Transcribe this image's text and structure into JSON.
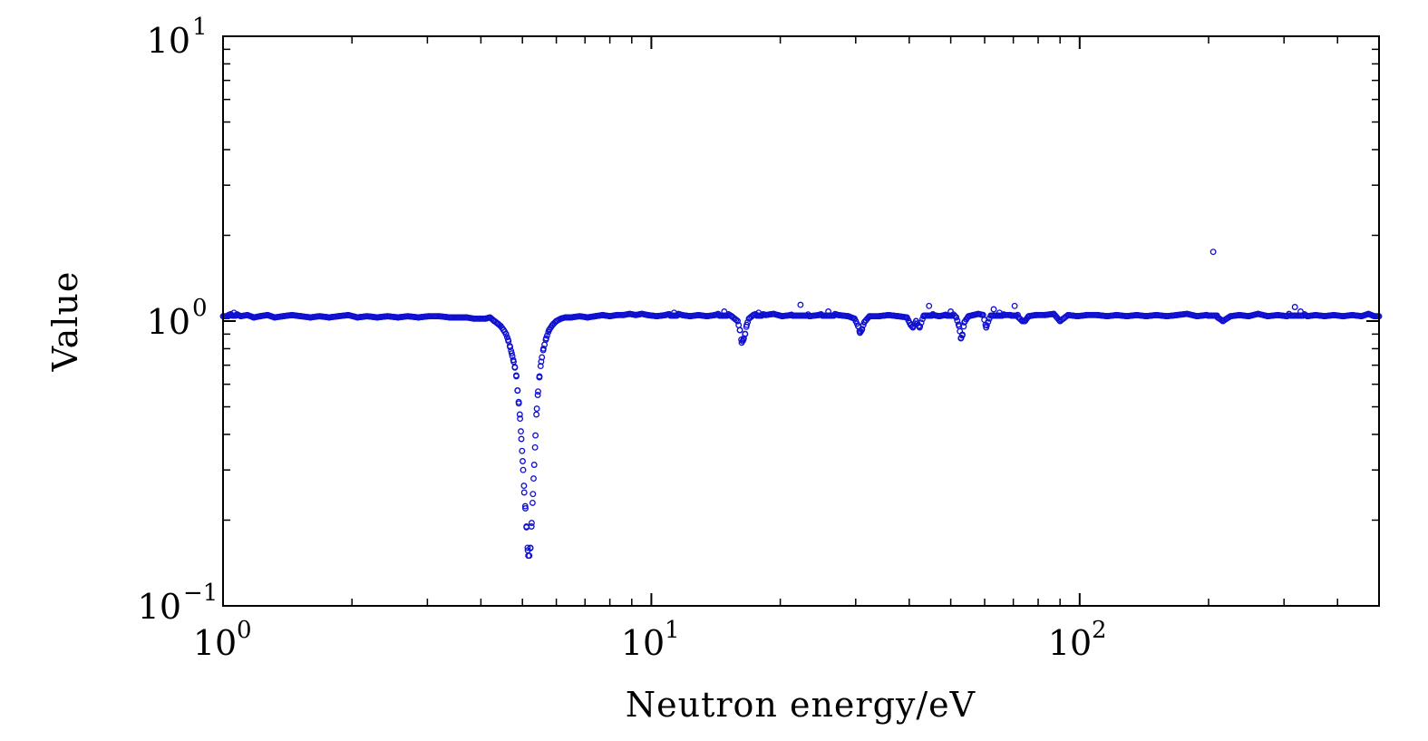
{
  "chart_data": {
    "type": "scatter",
    "title": "",
    "xlabel": "Neutron energy/eV",
    "ylabel": "Value",
    "x_scale": "log",
    "y_scale": "log",
    "xlim": [
      1,
      500
    ],
    "ylim": [
      0.1,
      10
    ],
    "x_ticks": [
      {
        "value": 1,
        "base": "10",
        "exp": "0"
      },
      {
        "value": 10,
        "base": "10",
        "exp": "1"
      },
      {
        "value": 100,
        "base": "10",
        "exp": "2"
      }
    ],
    "y_ticks": [
      {
        "value": 0.1,
        "base": "10",
        "exp": "−1"
      },
      {
        "value": 1,
        "base": "10",
        "exp": "0"
      },
      {
        "value": 10,
        "base": "10",
        "exp": "1"
      }
    ],
    "marker": {
      "shape": "open-circle",
      "color": "#1010d0"
    },
    "series": [
      {
        "name": "Value",
        "points": [
          [
            1.03,
            1.05
          ],
          [
            1.06,
            1.07
          ],
          [
            1.1,
            1.04
          ],
          [
            1.14,
            1.05
          ],
          [
            1.18,
            1.03
          ],
          [
            1.22,
            1.04
          ],
          [
            1.27,
            1.05
          ],
          [
            1.32,
            1.03
          ],
          [
            1.38,
            1.04
          ],
          [
            1.45,
            1.05
          ],
          [
            1.52,
            1.04
          ],
          [
            1.6,
            1.03
          ],
          [
            1.68,
            1.04
          ],
          [
            1.77,
            1.03
          ],
          [
            1.86,
            1.04
          ],
          [
            1.96,
            1.05
          ],
          [
            2.06,
            1.03
          ],
          [
            2.17,
            1.04
          ],
          [
            2.29,
            1.03
          ],
          [
            2.42,
            1.04
          ],
          [
            2.56,
            1.03
          ],
          [
            2.7,
            1.04
          ],
          [
            2.86,
            1.03
          ],
          [
            3.02,
            1.04
          ],
          [
            3.2,
            1.04
          ],
          [
            3.38,
            1.03
          ],
          [
            3.55,
            1.03
          ],
          [
            3.7,
            1.03
          ],
          [
            3.85,
            1.02
          ],
          [
            3.98,
            1.02
          ],
          [
            4.1,
            1.02
          ],
          [
            4.2,
            1.03
          ],
          [
            4.3,
            1.0
          ],
          [
            4.38,
            0.98
          ],
          [
            4.45,
            0.96
          ],
          [
            4.52,
            0.93
          ],
          [
            4.58,
            0.9
          ],
          [
            4.63,
            0.86
          ],
          [
            4.68,
            0.81
          ],
          [
            4.72,
            0.77
          ],
          [
            4.76,
            0.73
          ],
          [
            4.8,
            0.69
          ],
          [
            4.84,
            0.64
          ],
          [
            4.87,
            0.57
          ],
          [
            4.9,
            0.52
          ],
          [
            4.93,
            0.47
          ],
          [
            4.96,
            0.41
          ],
          [
            4.99,
            0.35
          ],
          [
            5.02,
            0.3
          ],
          [
            5.05,
            0.25
          ],
          [
            5.08,
            0.22
          ],
          [
            5.11,
            0.19
          ],
          [
            5.14,
            0.16
          ],
          [
            5.16,
            0.15
          ],
          [
            5.19,
            0.15
          ],
          [
            5.22,
            0.16
          ],
          [
            5.25,
            0.19
          ],
          [
            5.28,
            0.23
          ],
          [
            5.31,
            0.28
          ],
          [
            5.35,
            0.36
          ],
          [
            5.39,
            0.47
          ],
          [
            5.43,
            0.55
          ],
          [
            5.48,
            0.64
          ],
          [
            5.53,
            0.72
          ],
          [
            5.6,
            0.8
          ],
          [
            5.68,
            0.87
          ],
          [
            5.77,
            0.93
          ],
          [
            5.88,
            0.97
          ],
          [
            6.0,
            1.0
          ],
          [
            6.15,
            1.02
          ],
          [
            6.3,
            1.03
          ],
          [
            6.5,
            1.03
          ],
          [
            6.8,
            1.04
          ],
          [
            7.1,
            1.03
          ],
          [
            7.4,
            1.04
          ],
          [
            7.7,
            1.05
          ],
          [
            8.0,
            1.04
          ],
          [
            8.3,
            1.05
          ],
          [
            8.6,
            1.05
          ],
          [
            8.9,
            1.06
          ],
          [
            9.2,
            1.05
          ],
          [
            9.5,
            1.06
          ],
          [
            9.8,
            1.05
          ],
          [
            10.3,
            1.04
          ],
          [
            10.8,
            1.05
          ],
          [
            11.3,
            1.07
          ],
          [
            11.8,
            1.05
          ],
          [
            12.3,
            1.04
          ],
          [
            12.9,
            1.05
          ],
          [
            13.5,
            1.04
          ],
          [
            14.1,
            1.05
          ],
          [
            14.8,
            1.08
          ],
          [
            15.4,
            1.04
          ],
          [
            15.9,
            1.0
          ],
          [
            16.1,
            0.93
          ],
          [
            16.25,
            0.84
          ],
          [
            16.4,
            0.86
          ],
          [
            16.55,
            0.9
          ],
          [
            16.7,
            0.97
          ],
          [
            16.9,
            1.02
          ],
          [
            17.3,
            1.05
          ],
          [
            17.8,
            1.07
          ],
          [
            18.5,
            1.05
          ],
          [
            19.3,
            1.06
          ],
          [
            20.2,
            1.04
          ],
          [
            21.2,
            1.05
          ],
          [
            22.3,
            1.14
          ],
          [
            23.4,
            1.04
          ],
          [
            24.6,
            1.05
          ],
          [
            25.9,
            1.08
          ],
          [
            27.3,
            1.05
          ],
          [
            28.8,
            1.04
          ],
          [
            29.8,
            1.02
          ],
          [
            30.4,
            0.96
          ],
          [
            30.7,
            0.91
          ],
          [
            31.0,
            0.93
          ],
          [
            31.4,
            0.99
          ],
          [
            32.3,
            1.04
          ],
          [
            34.0,
            1.04
          ],
          [
            35.8,
            1.05
          ],
          [
            37.7,
            1.04
          ],
          [
            39.5,
            1.03
          ],
          [
            40.3,
            0.97
          ],
          [
            40.8,
            0.95
          ],
          [
            41.5,
            1.0
          ],
          [
            42.3,
            0.95
          ],
          [
            43.2,
            1.04
          ],
          [
            44.5,
            1.13
          ],
          [
            45.5,
            1.05
          ],
          [
            47.0,
            1.04
          ],
          [
            48.5,
            1.05
          ],
          [
            50.0,
            1.08
          ],
          [
            51.5,
            1.03
          ],
          [
            52.3,
            0.96
          ],
          [
            52.8,
            0.87
          ],
          [
            53.2,
            0.89
          ],
          [
            53.8,
            0.99
          ],
          [
            55.0,
            1.04
          ],
          [
            56.5,
            1.05
          ],
          [
            58.0,
            1.06
          ],
          [
            59.5,
            1.05
          ],
          [
            60.5,
            0.95
          ],
          [
            61.5,
            1.02
          ],
          [
            63.0,
            1.1
          ],
          [
            65.0,
            1.07
          ],
          [
            67.0,
            1.05
          ],
          [
            69.0,
            1.05
          ],
          [
            70.5,
            1.13
          ],
          [
            72.0,
            1.03
          ],
          [
            73.5,
            1.0
          ],
          [
            74.5,
            1.0
          ],
          [
            76.0,
            1.04
          ],
          [
            79.0,
            1.05
          ],
          [
            83.0,
            1.05
          ],
          [
            87.0,
            1.06
          ],
          [
            90.0,
            1.0
          ],
          [
            94.0,
            1.05
          ],
          [
            99.0,
            1.04
          ],
          [
            104.0,
            1.05
          ],
          [
            110.0,
            1.05
          ],
          [
            116.0,
            1.04
          ],
          [
            122.0,
            1.05
          ],
          [
            129.0,
            1.04
          ],
          [
            136.0,
            1.05
          ],
          [
            143.0,
            1.04
          ],
          [
            151.0,
            1.05
          ],
          [
            160.0,
            1.04
          ],
          [
            169.0,
            1.05
          ],
          [
            178.0,
            1.06
          ],
          [
            188.0,
            1.04
          ],
          [
            198.0,
            1.05
          ],
          [
            205.0,
            1.75
          ],
          [
            210.0,
            1.03
          ],
          [
            216.0,
            1.0
          ],
          [
            225.0,
            1.04
          ],
          [
            236.0,
            1.05
          ],
          [
            248.0,
            1.04
          ],
          [
            261.0,
            1.06
          ],
          [
            275.0,
            1.04
          ],
          [
            290.0,
            1.05
          ],
          [
            305.0,
            1.04
          ],
          [
            318.0,
            1.12
          ],
          [
            328.0,
            1.08
          ],
          [
            340.0,
            1.04
          ],
          [
            356.0,
            1.05
          ],
          [
            373.0,
            1.04
          ],
          [
            392.0,
            1.05
          ],
          [
            412.0,
            1.04
          ],
          [
            433.0,
            1.05
          ],
          [
            455.0,
            1.04
          ],
          [
            472.0,
            1.06
          ],
          [
            488.0,
            1.04
          ]
        ]
      }
    ]
  }
}
